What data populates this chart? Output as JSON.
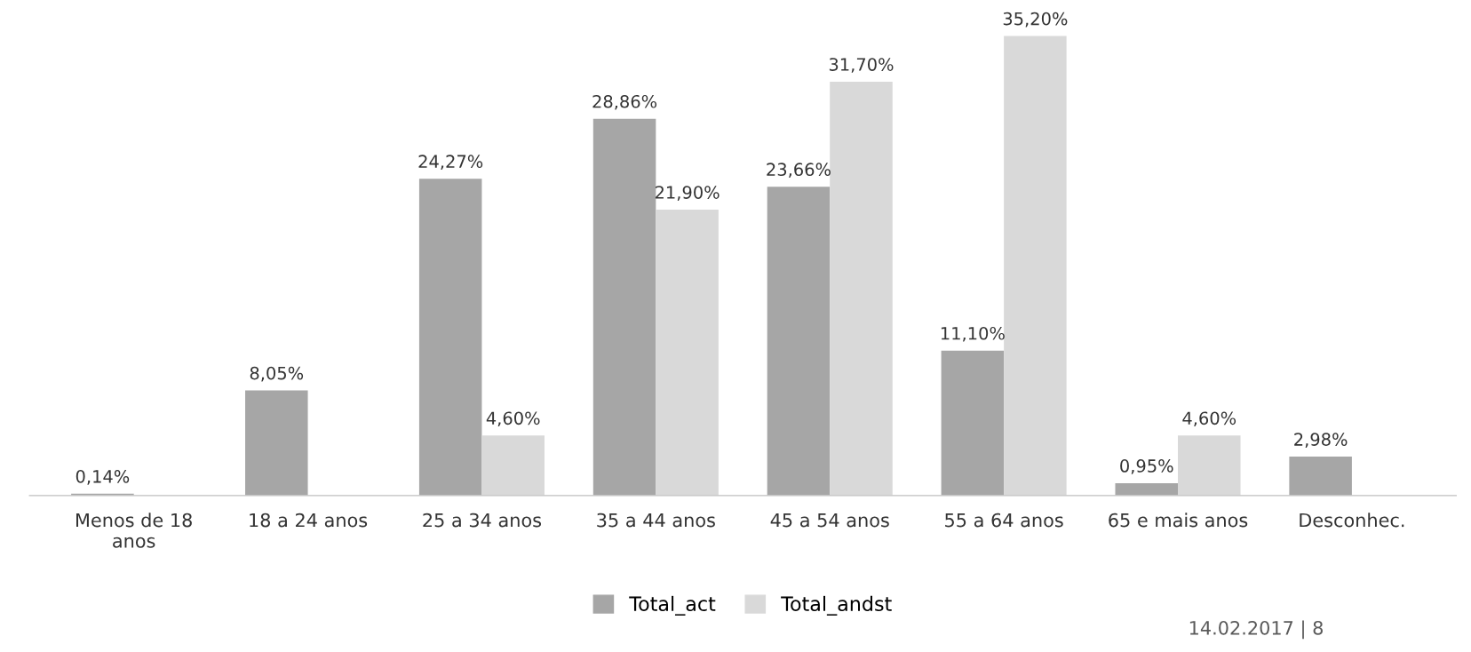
{
  "chart_data": {
    "type": "bar",
    "categories": [
      "Menos de 18\nanos",
      "18 a 24 anos",
      "25 a 34 anos",
      "35 a 44 anos",
      "45 a 54 anos",
      "55 a 64 anos",
      "65 e mais anos",
      "Desconhec."
    ],
    "series": [
      {
        "name": "Total_act",
        "color": "#a6a6a6",
        "values": [
          0.14,
          8.05,
          24.27,
          28.86,
          23.66,
          11.1,
          0.95,
          2.98
        ],
        "value_labels": [
          "0,14%",
          "8,05%",
          "24,27%",
          "28,86%",
          "23,66%",
          "11,10%",
          "0,95%",
          "2,98%"
        ]
      },
      {
        "name": "Total_andst",
        "color": "#d9d9d9",
        "values": [
          null,
          null,
          4.6,
          21.9,
          31.7,
          35.2,
          4.6,
          null
        ],
        "value_labels": [
          null,
          null,
          "4,60%",
          "21,90%",
          "31,70%",
          "35,20%",
          "4,60%",
          null
        ]
      }
    ],
    "legend": "bottom",
    "grid": false,
    "tick_labels": "x",
    "annotations": [
      "14.02.2017 | 8"
    ]
  }
}
